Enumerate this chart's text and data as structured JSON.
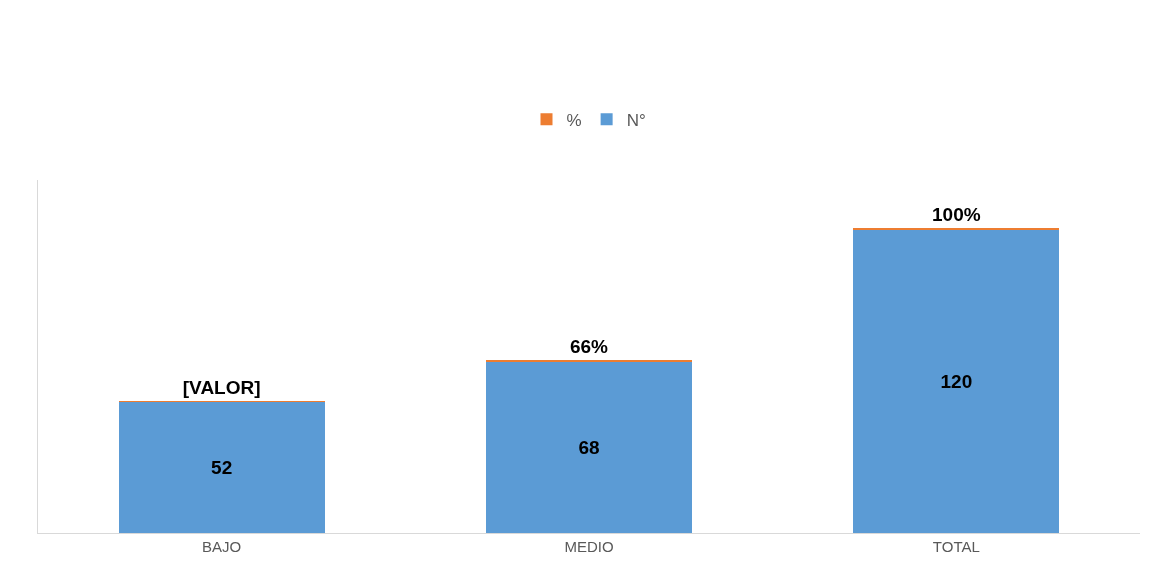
{
  "chart_data": {
    "type": "bar",
    "stacked": true,
    "categories": [
      "BAJO",
      "MEDIO",
      "TOTAL"
    ],
    "series": [
      {
        "name": "N°",
        "color": "#5b9bd5",
        "values": [
          52,
          68,
          120
        ],
        "value_labels": [
          "52",
          "68",
          "120"
        ]
      },
      {
        "name": "%",
        "color": "#ed7d31",
        "values": [
          0.34,
          0.66,
          1
        ],
        "value_labels": [
          "[VALOR]",
          "66%",
          "100%"
        ]
      }
    ],
    "ylim": [
      0,
      140
    ],
    "tick_labels": "x",
    "grid": false,
    "legend": "top"
  }
}
